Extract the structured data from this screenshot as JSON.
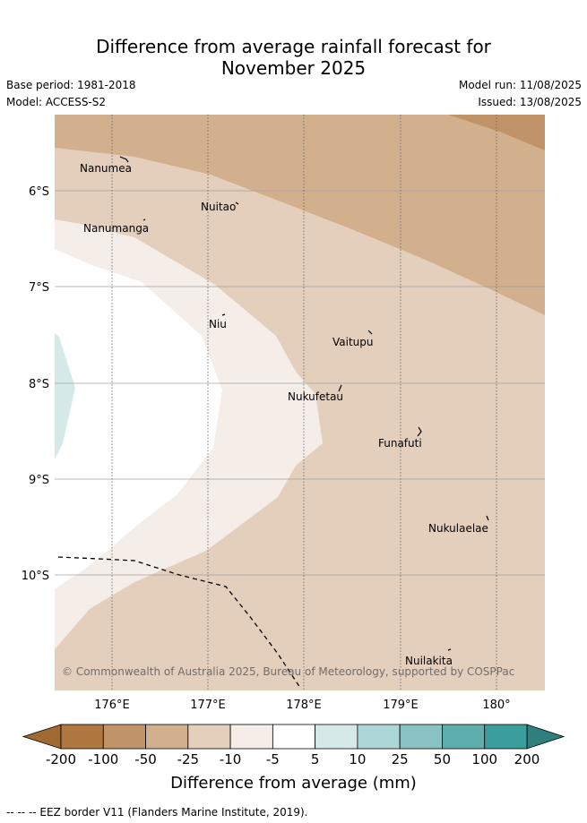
{
  "title_line1": "Difference from average rainfall forecast for",
  "title_line2": "November 2025",
  "base_period": "Base period: 1981-2018",
  "model": "Model: ACCESS-S2",
  "model_run": "Model run: 11/08/2025",
  "issued": "Issued: 13/08/2025",
  "copyright": "© Commonwealth of Australia 2025, Bureau of Meteorology, supported by COSPPac",
  "lat_labels": [
    "6°S",
    "7°S",
    "8°S",
    "9°S",
    "10°S"
  ],
  "lon_labels": [
    "176°E",
    "177°E",
    "178°E",
    "179°E",
    "180°"
  ],
  "places": [
    "Nanumea",
    "Nuitao",
    "Nanumanga",
    "Niu",
    "Vaitupu",
    "Nukufetau",
    "Funafuti",
    "Nukulaelae",
    "Nuilakita"
  ],
  "legend": {
    "title": "Difference from average (mm)",
    "ticks": [
      "-200",
      "-100",
      "-50",
      "-25",
      "-10",
      "-5",
      "5",
      "10",
      "25",
      "50",
      "100",
      "200"
    ],
    "colors": [
      "#b07840",
      "#c09468",
      "#d2b08e",
      "#e3cfbc",
      "#f5ede8",
      "#ffffff",
      "#d4e9e8",
      "#add6d6",
      "#88c2c2",
      "#5faeae",
      "#3a9e9c"
    ],
    "low_color": "#a06a33",
    "high_color": "#2f7f7e"
  },
  "footer": "--  --  -- EEZ border V11 (Flanders Marine Institute, 2019)."
}
